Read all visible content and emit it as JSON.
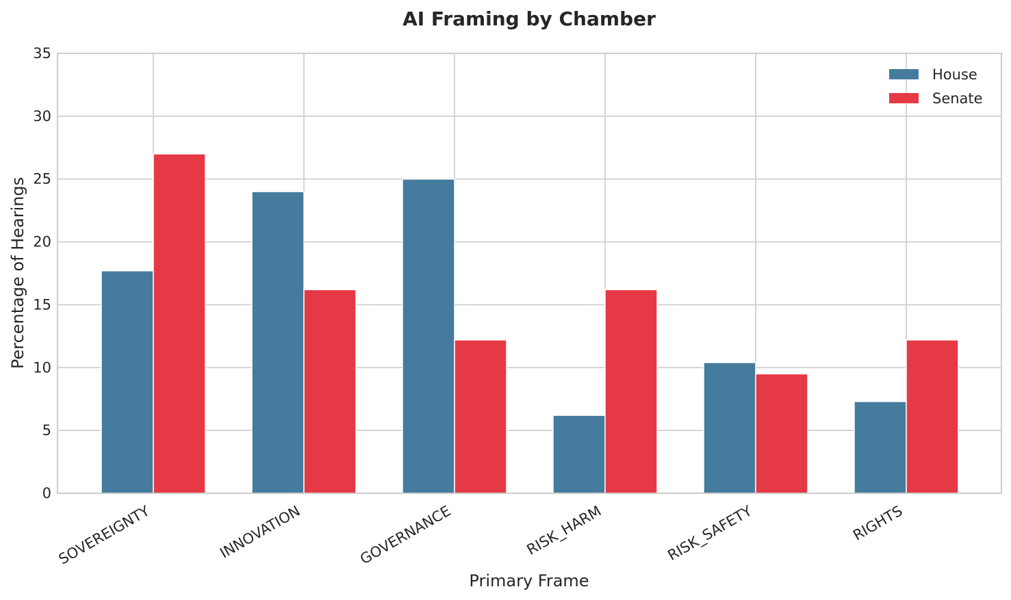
{
  "chart_data": {
    "type": "bar",
    "title": "AI Framing by Chamber",
    "xlabel": "Primary Frame",
    "ylabel": "Percentage of Hearings",
    "categories": [
      "SOVEREIGNTY",
      "INNOVATION",
      "GOVERNANCE",
      "RISK_HARM",
      "RISK_SAFETY",
      "RIGHTS"
    ],
    "series": [
      {
        "name": "House",
        "color": "#457b9d",
        "values": [
          17.7,
          24.0,
          25.0,
          6.2,
          10.4,
          7.3
        ]
      },
      {
        "name": "Senate",
        "color": "#e63946",
        "values": [
          27.0,
          16.2,
          12.2,
          16.2,
          9.5,
          12.2
        ]
      }
    ],
    "ylim": [
      0,
      35
    ],
    "yticks": [
      0,
      5,
      10,
      15,
      20,
      25,
      30,
      35
    ],
    "grid": true,
    "legend_position": "top-right"
  }
}
